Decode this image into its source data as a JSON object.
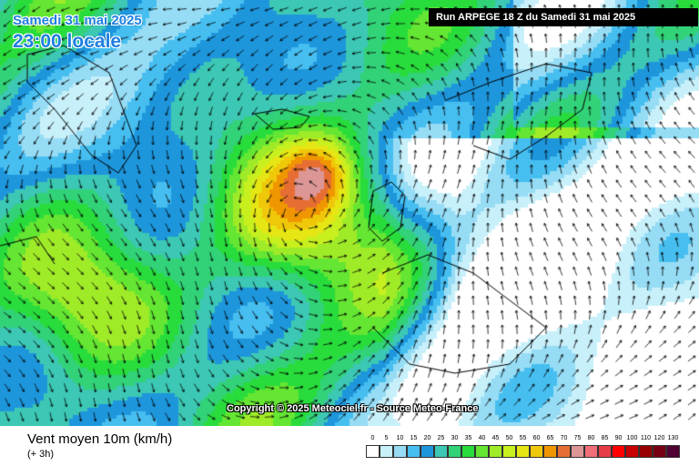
{
  "header": {
    "date": "Samedi 31 mai 2025",
    "time": "23:00 locale",
    "run": "Run ARPEGE 18 Z du Samedi 31 mai 2025"
  },
  "copyright": "Copyright © 2025 Meteociel.fr - Source Meteo-France",
  "legend": {
    "title": "Vent moyen 10m (km/h)",
    "subtitle": "(+ 3h)",
    "labels": [
      "0",
      "5",
      "10",
      "15",
      "20",
      "25",
      "30",
      "35",
      "40",
      "45",
      "50",
      "55",
      "60",
      "65",
      "70",
      "75",
      "80",
      "85",
      "90",
      "100",
      "110",
      "120",
      "130"
    ],
    "colors": [
      "#ffffff",
      "#c8f0fa",
      "#96dcf5",
      "#46bef0",
      "#1e96dc",
      "#3cc8b4",
      "#32d278",
      "#28dc3c",
      "#64e632",
      "#a0eb28",
      "#c8f01e",
      "#e6e614",
      "#f0c80a",
      "#f09600",
      "#e66e32",
      "#dc9696",
      "#f06e78",
      "#e63c46",
      "#ff0000",
      "#c80000",
      "#960000",
      "#780014",
      "#500032"
    ]
  }
}
